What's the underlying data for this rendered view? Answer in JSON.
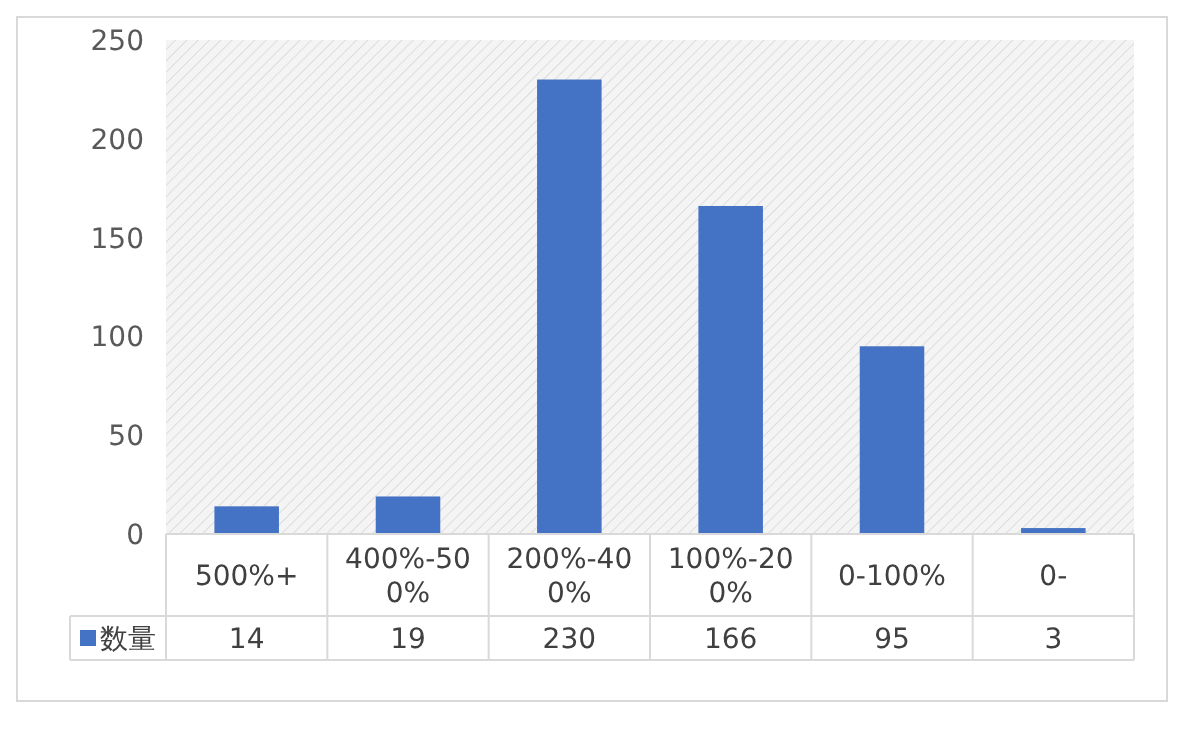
{
  "chart_data": {
    "type": "bar",
    "categories": [
      "500%+",
      "400%-500%",
      "200%-400%",
      "100%-200%",
      "0-100%",
      "0-"
    ],
    "series": [
      {
        "name": "数量",
        "color": "#4472c4",
        "values": [
          14,
          19,
          230,
          166,
          95,
          3
        ]
      }
    ],
    "ylim": [
      0,
      250
    ],
    "yticks": [
      0,
      50,
      100,
      150,
      200,
      250
    ],
    "data_labels": true,
    "legend": "bottom"
  }
}
